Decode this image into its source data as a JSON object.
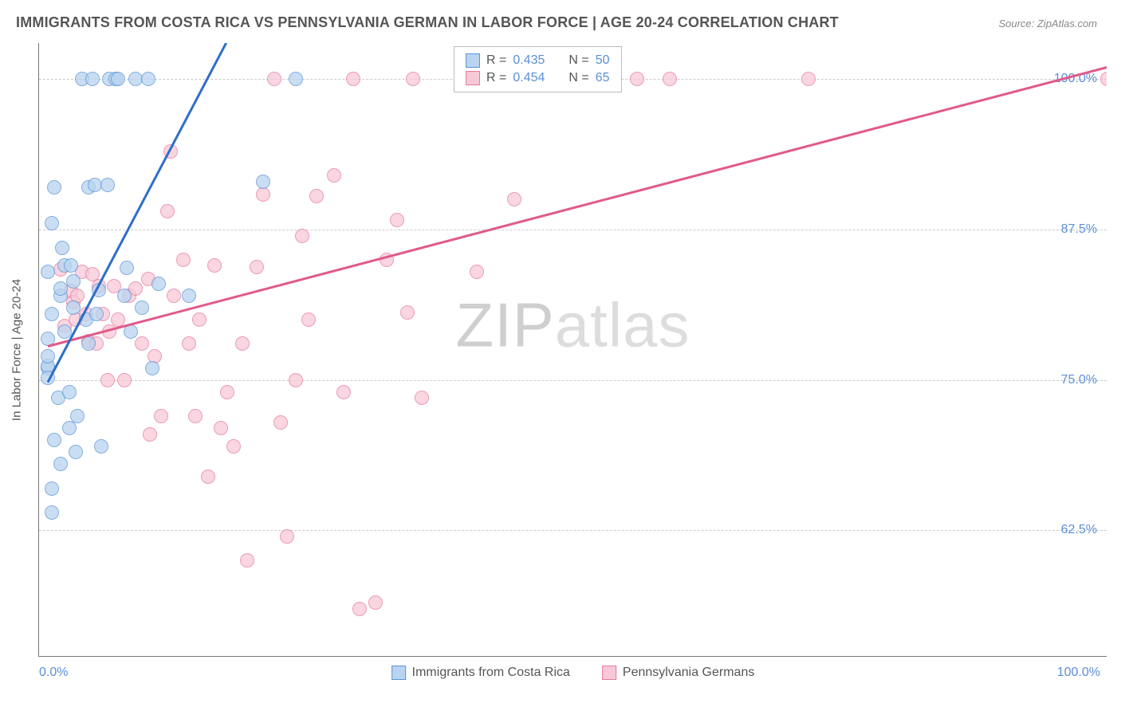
{
  "title": "IMMIGRANTS FROM COSTA RICA VS PENNSYLVANIA GERMAN IN LABOR FORCE | AGE 20-24 CORRELATION CHART",
  "source": "Source: ZipAtlas.com",
  "watermark_a": "ZIP",
  "watermark_b": "atlas",
  "chart": {
    "type": "scatter",
    "y_axis_title": "In Labor Force | Age 20-24",
    "xlim": [
      0,
      100
    ],
    "ylim": [
      52,
      103
    ],
    "x_ticks": [
      0,
      16.67,
      33.33,
      50,
      66.67,
      83.33,
      100
    ],
    "x_tick_labels": {
      "left": "0.0%",
      "right": "100.0%"
    },
    "y_gridlines": [
      62.5,
      75.0,
      87.5,
      100.0
    ],
    "y_tick_labels": [
      "62.5%",
      "75.0%",
      "87.5%",
      "100.0%"
    ],
    "grid_color": "#cccccc",
    "axis_color": "#777777",
    "background_color": "#ffffff",
    "point_radius": 9,
    "title_fontsize": 18,
    "label_fontsize": 15,
    "tick_fontsize": 16,
    "tick_color": "#5b8fd6"
  },
  "series": [
    {
      "name": "Immigrants from Costa Rica",
      "fill": "#b9d4f0",
      "stroke": "#5b94d6",
      "line_color": "#2e6fc9",
      "R": "0.435",
      "N": "50",
      "trend": {
        "x1": 0.8,
        "y1": 74.8,
        "x2": 17.5,
        "y2": 103.0
      },
      "points": [
        [
          0.8,
          76.0
        ],
        [
          0.8,
          78.4
        ],
        [
          0.8,
          76.2
        ],
        [
          0.8,
          77.0
        ],
        [
          0.8,
          75.2
        ],
        [
          0.8,
          84.0
        ],
        [
          1.2,
          88.0
        ],
        [
          1.2,
          66.0
        ],
        [
          1.2,
          80.5
        ],
        [
          1.2,
          64.0
        ],
        [
          1.4,
          70.0
        ],
        [
          1.4,
          91.0
        ],
        [
          1.8,
          73.5
        ],
        [
          2.0,
          68.0
        ],
        [
          2.0,
          82.0
        ],
        [
          2.0,
          82.6
        ],
        [
          2.2,
          86.0
        ],
        [
          2.4,
          79.0
        ],
        [
          2.4,
          84.5
        ],
        [
          2.8,
          71.0
        ],
        [
          2.8,
          74.0
        ],
        [
          3.0,
          84.5
        ],
        [
          3.2,
          83.2
        ],
        [
          3.2,
          81.0
        ],
        [
          3.4,
          69.0
        ],
        [
          3.6,
          72.0
        ],
        [
          4.0,
          100.0
        ],
        [
          4.4,
          80.0
        ],
        [
          4.6,
          91.0
        ],
        [
          4.6,
          78.0
        ],
        [
          5.0,
          100.0
        ],
        [
          5.2,
          91.2
        ],
        [
          5.4,
          80.5
        ],
        [
          5.6,
          82.5
        ],
        [
          5.8,
          69.5
        ],
        [
          6.4,
          91.2
        ],
        [
          6.6,
          100.0
        ],
        [
          7.2,
          100.0
        ],
        [
          7.4,
          100.0
        ],
        [
          8.0,
          82.0
        ],
        [
          8.2,
          84.3
        ],
        [
          8.6,
          79.0
        ],
        [
          9.0,
          100.0
        ],
        [
          9.6,
          81.0
        ],
        [
          10.2,
          100.0
        ],
        [
          10.6,
          76.0
        ],
        [
          11.2,
          83.0
        ],
        [
          14.0,
          82.0
        ],
        [
          21.0,
          91.5
        ],
        [
          24.0,
          100.0
        ]
      ]
    },
    {
      "name": "Pennsylvania Germans",
      "fill": "#f7c9d6",
      "stroke": "#e67aa0",
      "line_color": "#e05a8a",
      "R": "0.454",
      "N": "65",
      "trend": {
        "x1": 0.8,
        "y1": 77.8,
        "x2": 100.0,
        "y2": 101.0
      },
      "points": [
        [
          2.0,
          84.2
        ],
        [
          2.4,
          79.5
        ],
        [
          3.0,
          82.4
        ],
        [
          3.2,
          81.5
        ],
        [
          3.4,
          80.0
        ],
        [
          3.6,
          82.0
        ],
        [
          4.0,
          84.0
        ],
        [
          4.4,
          80.5
        ],
        [
          4.6,
          78.2
        ],
        [
          5.0,
          83.8
        ],
        [
          5.4,
          78.0
        ],
        [
          5.6,
          82.8
        ],
        [
          6.0,
          80.5
        ],
        [
          6.4,
          75.0
        ],
        [
          6.6,
          79.0
        ],
        [
          7.0,
          82.8
        ],
        [
          7.4,
          80.0
        ],
        [
          8.0,
          75.0
        ],
        [
          8.4,
          82.0
        ],
        [
          9.0,
          82.6
        ],
        [
          9.6,
          78.0
        ],
        [
          10.2,
          83.4
        ],
        [
          10.4,
          70.5
        ],
        [
          10.8,
          77.0
        ],
        [
          11.4,
          72.0
        ],
        [
          12.0,
          89.0
        ],
        [
          12.3,
          94.0
        ],
        [
          12.6,
          82.0
        ],
        [
          13.5,
          85.0
        ],
        [
          14.0,
          78.0
        ],
        [
          14.6,
          72.0
        ],
        [
          15.0,
          80.0
        ],
        [
          15.8,
          67.0
        ],
        [
          16.4,
          84.5
        ],
        [
          17.0,
          71.0
        ],
        [
          17.6,
          74.0
        ],
        [
          18.2,
          69.5
        ],
        [
          19.0,
          78.0
        ],
        [
          19.5,
          60.0
        ],
        [
          20.4,
          84.4
        ],
        [
          21.0,
          90.4
        ],
        [
          22.0,
          100.0
        ],
        [
          22.6,
          71.5
        ],
        [
          23.2,
          62.0
        ],
        [
          24.0,
          75.0
        ],
        [
          24.6,
          87.0
        ],
        [
          25.2,
          80.0
        ],
        [
          26.0,
          90.3
        ],
        [
          27.6,
          92.0
        ],
        [
          28.5,
          74.0
        ],
        [
          29.4,
          100.0
        ],
        [
          30.0,
          56.0
        ],
        [
          31.5,
          56.5
        ],
        [
          32.5,
          85.0
        ],
        [
          33.5,
          88.3
        ],
        [
          34.5,
          80.6
        ],
        [
          35.0,
          100.0
        ],
        [
          35.8,
          73.5
        ],
        [
          41.0,
          84.0
        ],
        [
          44.5,
          90.0
        ],
        [
          48.5,
          100.0
        ],
        [
          56.0,
          100.0
        ],
        [
          59.0,
          100.0
        ],
        [
          72.0,
          100.0
        ],
        [
          100.0,
          100.0
        ]
      ]
    }
  ],
  "legend": {
    "R_label": "R =",
    "N_label": "N ="
  }
}
